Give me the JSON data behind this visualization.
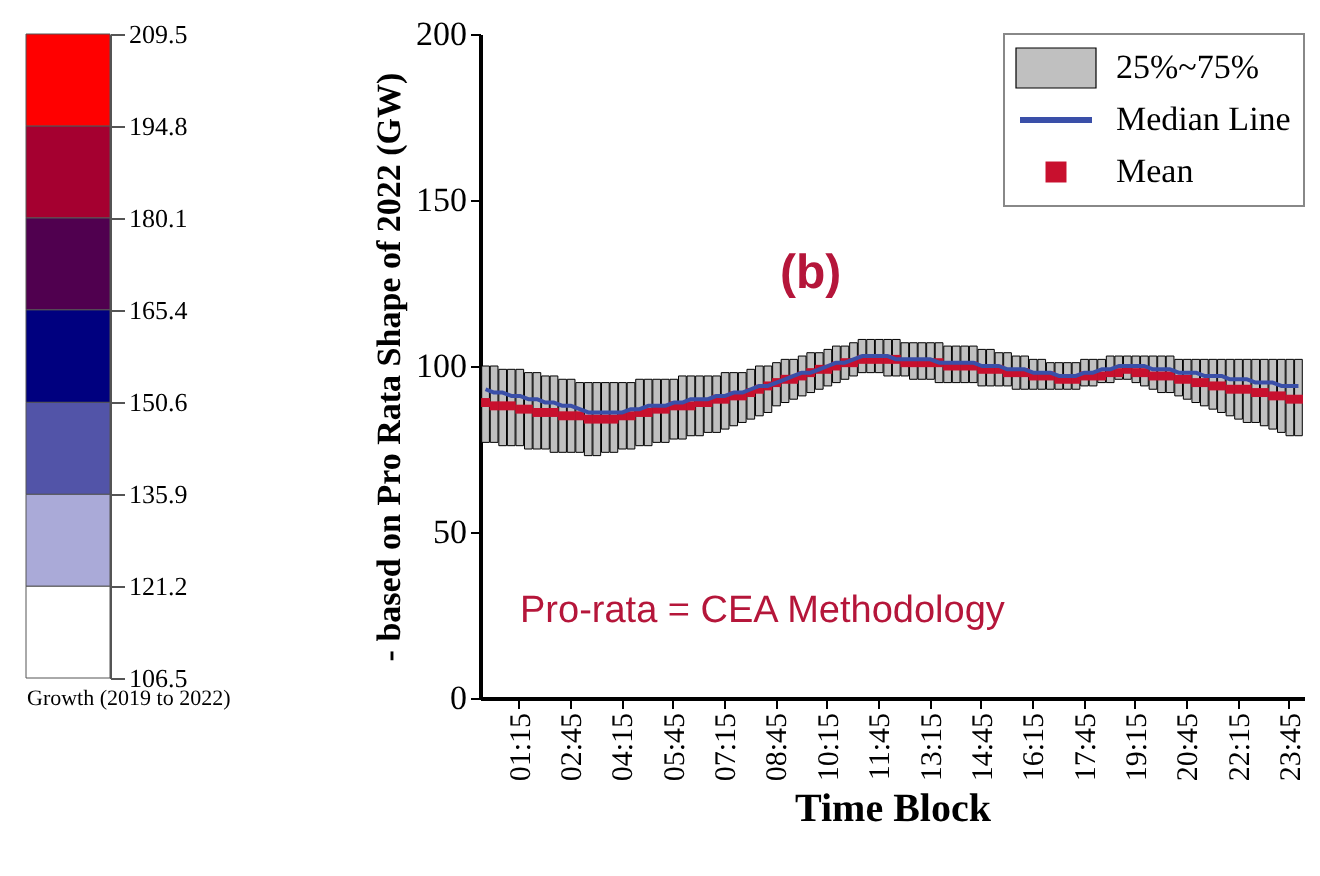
{
  "chart_data": [
    {
      "type": "bar",
      "xlabel": "Growth (2019 to 2022)",
      "categories": [
        null
      ],
      "ylim": [
        106.5,
        209.5
      ],
      "yticks": [
        106.5,
        121.2,
        135.9,
        150.6,
        165.4,
        180.1,
        194.8,
        209.5
      ],
      "series": [
        {
          "color": "#ffffff",
          "base": [
            106.5
          ],
          "values": [
            14.7
          ]
        },
        {
          "color": "#aaaad8",
          "base": [
            121.2
          ],
          "values": [
            14.7
          ]
        },
        {
          "color": "#5254a8",
          "base": [
            135.9
          ],
          "values": [
            14.7
          ]
        },
        {
          "color": "#00007f",
          "base": [
            150.6
          ],
          "values": [
            14.8
          ]
        },
        {
          "color": "#50004f",
          "base": [
            165.4
          ],
          "values": [
            14.7
          ]
        },
        {
          "color": "#a50030",
          "base": [
            180.1
          ],
          "values": [
            14.7
          ]
        },
        {
          "color": "#ff0000",
          "base": [
            194.8
          ],
          "values": [
            14.7
          ]
        }
      ]
    },
    {
      "type": "bar",
      "xlabel": "Time Block",
      "ylabel": "- based on Pro Rata Shape of 2022 (GW)",
      "ylim": [
        0,
        200
      ],
      "yticks": [
        0,
        50,
        100,
        150,
        200
      ],
      "legend": "top right",
      "annotations": [
        "(b)",
        "Pro-rata = CEA Methodology"
      ],
      "categories": [
        null,
        null,
        null,
        null,
        "01:15",
        null,
        null,
        null,
        null,
        null,
        "02:45",
        null,
        null,
        null,
        null,
        null,
        "04:15",
        null,
        null,
        null,
        null,
        null,
        "05:45",
        null,
        null,
        null,
        null,
        null,
        "07:15",
        null,
        null,
        null,
        null,
        null,
        "08:45",
        null,
        null,
        null,
        null,
        null,
        "10:15",
        null,
        null,
        null,
        null,
        null,
        "11:45",
        null,
        null,
        null,
        null,
        null,
        "13:15",
        null,
        null,
        null,
        null,
        null,
        "14:45",
        null,
        null,
        null,
        null,
        null,
        "16:15",
        null,
        null,
        null,
        null,
        null,
        "17:45",
        null,
        null,
        null,
        null,
        null,
        "19:15",
        null,
        null,
        null,
        null,
        null,
        "20:45",
        null,
        null,
        null,
        null,
        null,
        "22:15",
        null,
        null,
        null,
        null,
        null,
        "23:45",
        null
      ],
      "series": [
        {
          "name": "25%~75%",
          "type": "bar",
          "color": "#c0c0c0",
          "base": [
            77,
            77,
            76,
            76,
            76,
            75,
            75,
            75,
            74,
            74,
            74,
            74,
            73,
            73,
            74,
            74,
            75,
            75,
            76,
            76,
            77,
            77,
            78,
            78,
            79,
            79,
            80,
            80,
            81,
            82,
            83,
            84,
            85,
            86,
            88,
            89,
            90,
            91,
            92,
            93,
            94,
            95,
            96,
            97,
            98,
            98,
            98,
            97,
            97,
            97,
            96,
            96,
            96,
            95,
            95,
            95,
            95,
            95,
            94,
            94,
            94,
            94,
            93,
            93,
            93,
            93,
            93,
            93,
            93,
            93,
            94,
            94,
            95,
            95,
            96,
            96,
            95,
            94,
            93,
            92,
            92,
            91,
            90,
            89,
            88,
            87,
            86,
            85,
            84,
            83,
            83,
            82,
            81,
            80,
            79,
            79
          ],
          "values": [
            23,
            23,
            23,
            23,
            23,
            23,
            23,
            22,
            23,
            22,
            22,
            21,
            22,
            22,
            21,
            21,
            20,
            20,
            20,
            20,
            19,
            19,
            18,
            19,
            18,
            18,
            17,
            17,
            17,
            16,
            15,
            15,
            15,
            14,
            13,
            13,
            12,
            12,
            12,
            11,
            11,
            11,
            10,
            10,
            10,
            10,
            10,
            11,
            11,
            10,
            11,
            11,
            11,
            12,
            11,
            11,
            11,
            11,
            11,
            11,
            10,
            10,
            10,
            10,
            9,
            9,
            8,
            8,
            8,
            8,
            8,
            8,
            7,
            8,
            7,
            7,
            8,
            9,
            10,
            11,
            11,
            11,
            12,
            13,
            14,
            15,
            16,
            17,
            18,
            19,
            19,
            20,
            21,
            22,
            23,
            23
          ]
        },
        {
          "name": "Median Line",
          "type": "line",
          "color": "#3a4fa8",
          "values": [
            93,
            92,
            92,
            91,
            91,
            90,
            90,
            89,
            89,
            88,
            88,
            87,
            86,
            86,
            86,
            86,
            86,
            87,
            87,
            88,
            88,
            88,
            89,
            89,
            90,
            90,
            90,
            91,
            91,
            92,
            92,
            93,
            94,
            94,
            95,
            96,
            97,
            98,
            98,
            99,
            100,
            101,
            101,
            102,
            103,
            103,
            103,
            103,
            102,
            102,
            102,
            102,
            102,
            101,
            101,
            101,
            101,
            101,
            100,
            100,
            100,
            99,
            99,
            99,
            98,
            98,
            98,
            97,
            97,
            97,
            98,
            98,
            99,
            99,
            100,
            100,
            100,
            100,
            99,
            99,
            99,
            98,
            98,
            98,
            97,
            97,
            97,
            96,
            96,
            96,
            95,
            95,
            95,
            94,
            94,
            94
          ]
        },
        {
          "name": "Mean",
          "type": "scatter",
          "marker": "square",
          "color": "#c8102e",
          "values": [
            89,
            88,
            88,
            88,
            87,
            87,
            86,
            86,
            86,
            85,
            85,
            85,
            84,
            84,
            84,
            84,
            85,
            85,
            86,
            86,
            87,
            87,
            88,
            88,
            88,
            89,
            89,
            90,
            90,
            91,
            91,
            92,
            93,
            94,
            95,
            96,
            96,
            97,
            98,
            99,
            99,
            100,
            101,
            101,
            102,
            102,
            102,
            102,
            102,
            101,
            101,
            101,
            101,
            101,
            100,
            100,
            100,
            100,
            99,
            99,
            99,
            98,
            98,
            98,
            97,
            97,
            97,
            96,
            96,
            96,
            97,
            97,
            97,
            98,
            98,
            99,
            98,
            98,
            97,
            97,
            97,
            96,
            96,
            95,
            95,
            94,
            94,
            93,
            93,
            93,
            92,
            92,
            91,
            91,
            90,
            90
          ]
        }
      ]
    }
  ]
}
